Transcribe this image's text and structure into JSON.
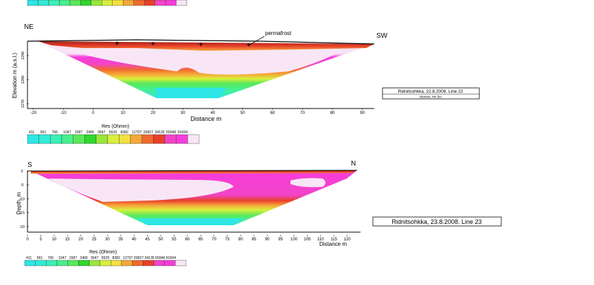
{
  "palette": {
    "breaks": [
      "411",
      "561",
      "766",
      "1047",
      "1587",
      "2406",
      "3647",
      "5529",
      "8382",
      "12707",
      "20827",
      "34135",
      "55946",
      "91694"
    ],
    "colors": [
      "#2ee6e6",
      "#32ecd6",
      "#38f0b8",
      "#46f08c",
      "#5ae85a",
      "#2ed82e",
      "#9ae63c",
      "#d8f03c",
      "#f4e040",
      "#f6a83a",
      "#f06a2c",
      "#e8402a",
      "#f244c8",
      "#f73cdc",
      "#f8e6f6"
    ]
  },
  "panels": [
    {
      "left_label": "NE",
      "right_label": "SW",
      "annotation": "permafrost",
      "xlabel": "Distance m",
      "ylabel": "Elevation m (a.s.l.)",
      "xticks": [
        "-20",
        "-10",
        "0",
        "10",
        "20",
        "30",
        "40",
        "50",
        "60",
        "70",
        "80",
        "90"
      ],
      "yticks": [
        "1290",
        "1280",
        "1270"
      ],
      "legend_title": "Res (Ohmm)",
      "info_title": "Ridnitsohkka, 22.8.2008. Line 22",
      "info_sub": "Wenner, 4m 5m"
    },
    {
      "left_label": "S",
      "right_label": "N",
      "xlabel": "Distance m",
      "ylabel": "Depth, m",
      "xticks": [
        "0",
        "5",
        "10",
        "15",
        "20",
        "25",
        "30",
        "35",
        "40",
        "45",
        "50",
        "55",
        "60",
        "65",
        "70",
        "75",
        "80",
        "85",
        "90",
        "95",
        "100",
        "105",
        "110",
        "115",
        "120"
      ],
      "yticks": [
        "0",
        "-5",
        "-10",
        "-15",
        "-20"
      ],
      "legend_title": "Res (Ohmm)",
      "info_title": "Ridnitsohkka, 23.8.2008. Line 23"
    }
  ],
  "chart_data": [
    {
      "type": "heatmap",
      "title": "Ridnitsohkka, 22.8.2008. Line 22",
      "xlabel": "Distance m",
      "ylabel": "Elevation m (a.s.l.)",
      "xlim": [
        -22,
        94
      ],
      "ylim": [
        1268,
        1296
      ],
      "annotations": [
        "permafrost"
      ],
      "electrode_markers_x": [
        8,
        20,
        36,
        52
      ],
      "color_scale_ohmm": [
        411,
        561,
        766,
        1047,
        1587,
        2406,
        3647,
        5529,
        8382,
        12707,
        20827,
        34135,
        55946,
        91694
      ]
    },
    {
      "type": "heatmap",
      "title": "Ridnitsohkka, 23.8.2008. Line 23",
      "xlabel": "Distance m",
      "ylabel": "Depth, m",
      "xlim": [
        0,
        125
      ],
      "ylim": [
        -22,
        0
      ],
      "color_scale_ohmm": [
        411,
        561,
        766,
        1047,
        1587,
        2406,
        3647,
        5529,
        8382,
        12707,
        20827,
        34135,
        55946,
        91694
      ]
    }
  ]
}
